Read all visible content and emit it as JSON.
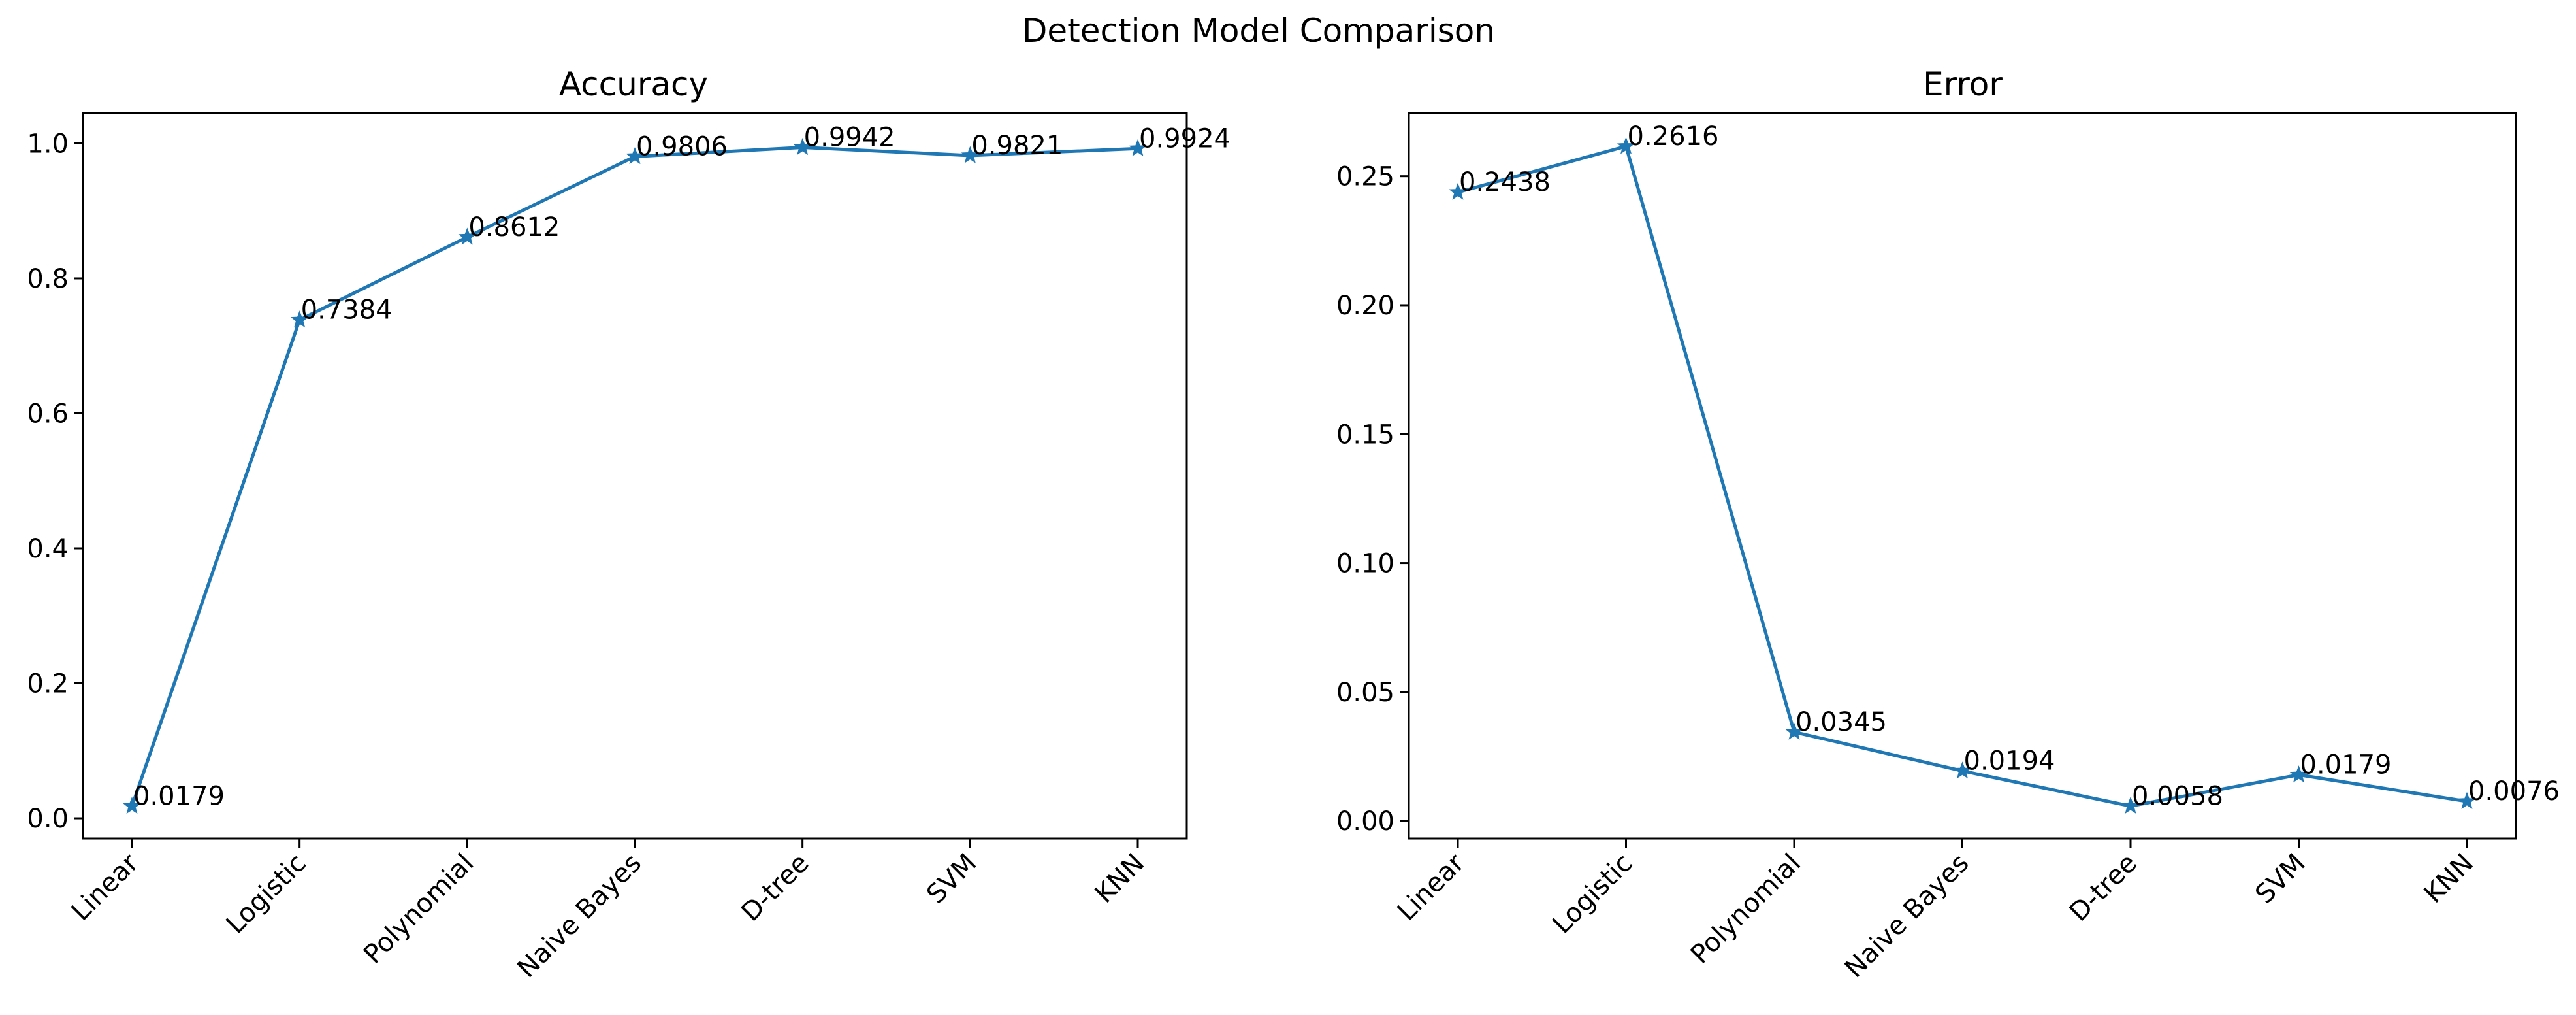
{
  "figure": {
    "title": "Detection Model Comparison"
  },
  "chart_data": [
    {
      "type": "line",
      "title": "Accuracy",
      "xlabel": "",
      "ylabel": "",
      "categories": [
        "Linear",
        "Logistic",
        "Polynomial",
        "Naive Bayes",
        "D-tree",
        "SVM",
        "KNN"
      ],
      "values": [
        0.0179,
        0.7384,
        0.8612,
        0.9806,
        0.9942,
        0.9821,
        0.9924
      ],
      "data_labels": [
        "0.0179",
        "0.7384",
        "0.8612",
        "0.9806",
        "0.9942",
        "0.9821",
        "0.9924"
      ],
      "ylim": [
        -0.03,
        1.045
      ],
      "yticks": [
        0.0,
        0.2,
        0.4,
        0.6,
        0.8,
        1.0
      ],
      "ytick_labels": [
        "0.0",
        "0.2",
        "0.4",
        "0.6",
        "0.8",
        "1.0"
      ],
      "marker": "star",
      "color": "#1f77b4",
      "grid": false,
      "legend": "none"
    },
    {
      "type": "line",
      "title": "Error",
      "xlabel": "",
      "ylabel": "",
      "categories": [
        "Linear",
        "Logistic",
        "Polynomial",
        "Naive Bayes",
        "D-tree",
        "SVM",
        "KNN"
      ],
      "values": [
        0.2438,
        0.2616,
        0.0345,
        0.0194,
        0.0058,
        0.0179,
        0.0076
      ],
      "data_labels": [
        "0.2438",
        "0.2616",
        "0.0345",
        "0.0194",
        "0.0058",
        "0.0179",
        "0.0076"
      ],
      "ylim": [
        -0.0068,
        0.2745
      ],
      "yticks": [
        0.0,
        0.05,
        0.1,
        0.15,
        0.2,
        0.25
      ],
      "ytick_labels": [
        "0.00",
        "0.05",
        "0.10",
        "0.15",
        "0.20",
        "0.25"
      ],
      "marker": "star",
      "color": "#1f77b4",
      "grid": false,
      "legend": "none"
    }
  ]
}
